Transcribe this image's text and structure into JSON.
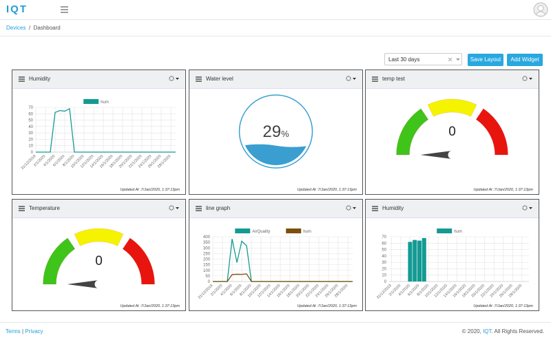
{
  "header": {
    "logo": "IQT"
  },
  "breadcrumb": {
    "items": [
      "Devices",
      "Dashboard"
    ],
    "separator": "/"
  },
  "toolbar": {
    "range": "Last 30 days",
    "buttons": [
      "Save Layout",
      "Add Widget"
    ]
  },
  "footer": {
    "links": [
      "Terms",
      "Privacy"
    ],
    "separator": "|",
    "copyright": "© 2020,",
    "brand": "IQT",
    "rights": ". All Rights Reserved."
  },
  "chart_data": [
    {
      "type": "line",
      "title": "Humidity",
      "updated": "Updated At :7/Jan/2020, 1:37:13pm",
      "categories": [
        "31/12/2019",
        null,
        "2/1/2020",
        null,
        "4/1/2020",
        null,
        "6/1/2020",
        null,
        "8/1/2020",
        null,
        "10/1/2020",
        null,
        "12/1/2020",
        null,
        "14/1/2020",
        null,
        "16/1/2020",
        null,
        "18/1/2020",
        null,
        "20/1/2020",
        null,
        "22/1/2020",
        null,
        "24/1/2020",
        null,
        "26/1/2020",
        null,
        "28/1/2020",
        null
      ],
      "series": [
        {
          "name": "hum",
          "color": "#139a93",
          "values": [
            0,
            0,
            0,
            0,
            62,
            65,
            64,
            68,
            0,
            0,
            0,
            0,
            0,
            0,
            0,
            0,
            0,
            0,
            0,
            0,
            0,
            0,
            0,
            0,
            0,
            0,
            0,
            0,
            0,
            0
          ]
        }
      ],
      "ylim": [
        0,
        70
      ],
      "yticks": [
        0,
        10,
        20,
        30,
        40,
        50,
        60,
        70
      ],
      "grid": true
    },
    {
      "type": "liquid",
      "title": "Water level",
      "updated": "Updated At :7/Jan/2020, 1:37:13pm",
      "value": 29,
      "unit": "%",
      "ylim": [
        0,
        100
      ],
      "color": "#3a9fd0"
    },
    {
      "type": "gauge",
      "title": "temp test",
      "updated": "Updated At :7/Jan/2020, 1:37:13pm",
      "value": 0,
      "ylim": [
        0,
        100
      ],
      "colors": [
        "#3fc41a",
        "#f5f300",
        "#e8150e"
      ]
    },
    {
      "type": "gauge",
      "title": "Temperature",
      "updated": "Updated At :7/Jan/2020, 1:37:13pm",
      "value": 0,
      "ylim": [
        0,
        100
      ],
      "colors": [
        "#3fc41a",
        "#f5f300",
        "#e8150e"
      ]
    },
    {
      "type": "line",
      "title": "line graph",
      "updated": "Updated At :7/Jan/2020, 1:37:13pm",
      "categories": [
        "31/12/2019",
        null,
        "2/1/2020",
        null,
        "4/1/2020",
        null,
        "6/1/2020",
        null,
        "8/1/2020",
        null,
        "10/1/2020",
        null,
        "12/1/2020",
        null,
        "14/1/2020",
        null,
        "16/1/2020",
        null,
        "18/1/2020",
        null,
        "20/1/2020",
        null,
        "22/1/2020",
        null,
        "24/1/2020",
        null,
        "26/1/2020",
        null,
        "28/1/2020",
        null
      ],
      "series": [
        {
          "name": "AirQuality",
          "color": "#139a93",
          "values": [
            0,
            0,
            0,
            0,
            380,
            170,
            360,
            320,
            0,
            0,
            0,
            0,
            0,
            0,
            0,
            0,
            0,
            0,
            0,
            0,
            0,
            0,
            0,
            0,
            0,
            0,
            0,
            0,
            0,
            0
          ]
        },
        {
          "name": "hum",
          "color": "#7d4f0c",
          "values": [
            0,
            0,
            0,
            0,
            62,
            65,
            64,
            68,
            0,
            0,
            0,
            0,
            0,
            0,
            0,
            0,
            0,
            0,
            0,
            0,
            0,
            0,
            0,
            0,
            0,
            0,
            0,
            0,
            0,
            0
          ]
        }
      ],
      "ylim": [
        0,
        400
      ],
      "yticks": [
        0,
        50,
        100,
        150,
        200,
        250,
        300,
        350,
        400
      ],
      "grid": true
    },
    {
      "type": "bar",
      "title": "Humidity",
      "updated": "Updated At :7/Jan/2020, 1:37:13pm",
      "categories": [
        "31/12/2019",
        null,
        "2/1/2020",
        null,
        "4/1/2020",
        null,
        "6/1/2020",
        null,
        "8/1/2020",
        null,
        "10/1/2020",
        null,
        "12/1/2020",
        null,
        "14/1/2020",
        null,
        "16/1/2020",
        null,
        "18/1/2020",
        null,
        "20/1/2020",
        null,
        "22/1/2020",
        null,
        "24/1/2020",
        null,
        "26/1/2020",
        null,
        "28/1/2020",
        null
      ],
      "series": [
        {
          "name": "hum",
          "color": "#139a93",
          "values": [
            0,
            0,
            0,
            0,
            62,
            65,
            64,
            68,
            0,
            0,
            0,
            0,
            0,
            0,
            0,
            0,
            0,
            0,
            0,
            0,
            0,
            0,
            0,
            0,
            0,
            0,
            0,
            0,
            0,
            0
          ]
        }
      ],
      "ylim": [
        0,
        70
      ],
      "yticks": [
        0,
        10,
        20,
        30,
        40,
        50,
        60,
        70
      ],
      "grid": true
    }
  ]
}
